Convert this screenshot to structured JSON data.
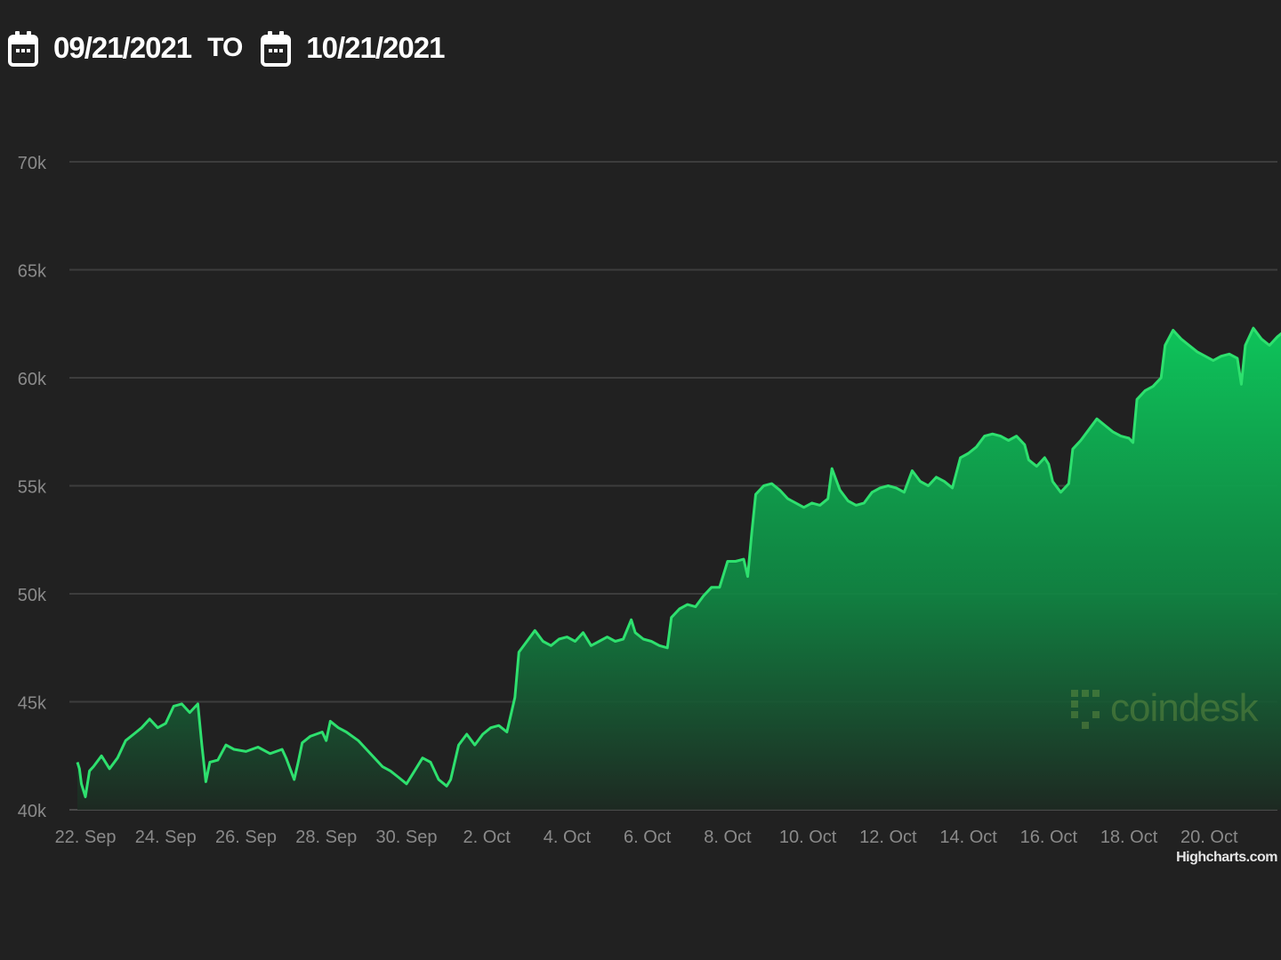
{
  "header": {
    "start_date": "09/21/2021",
    "separator": "TO",
    "end_date": "10/21/2021",
    "icon": "calendar-icon"
  },
  "credit": "Highcharts.com",
  "watermark": "coindesk",
  "colors": {
    "background": "#212121",
    "line": "#2ee06e",
    "area_top": "#0ec45a",
    "area_bottom": "#1d2a22",
    "grid": "#3d3d3d",
    "axis_text": "#8a8a8a"
  },
  "chart_data": {
    "type": "area",
    "title": "",
    "xlabel": "",
    "ylabel": "",
    "x_ticks": [
      "22. Sep",
      "24. Sep",
      "26. Sep",
      "28. Sep",
      "30. Sep",
      "2. Oct",
      "4. Oct",
      "6. Oct",
      "8. Oct",
      "10. Oct",
      "12. Oct",
      "14. Oct",
      "16. Oct",
      "18. Oct",
      "20. Oct"
    ],
    "y_ticks": [
      "40k",
      "45k",
      "50k",
      "55k",
      "60k",
      "65k",
      "70k"
    ],
    "ylim": [
      40000,
      70000
    ],
    "xlim": [
      21.6,
      51.7
    ],
    "x_unit": "days from 21 Sep 2021",
    "grid": true,
    "legend": "none",
    "series": [
      {
        "name": "",
        "points": [
          [
            21.8,
            42200
          ],
          [
            21.85,
            41900
          ],
          [
            21.9,
            41200
          ],
          [
            22.0,
            40600
          ],
          [
            22.1,
            41800
          ],
          [
            22.2,
            42000
          ],
          [
            22.4,
            42500
          ],
          [
            22.6,
            41900
          ],
          [
            22.8,
            42400
          ],
          [
            23.0,
            43200
          ],
          [
            23.2,
            43500
          ],
          [
            23.4,
            43800
          ],
          [
            23.6,
            44200
          ],
          [
            23.8,
            43800
          ],
          [
            24.0,
            44000
          ],
          [
            24.2,
            44800
          ],
          [
            24.4,
            44900
          ],
          [
            24.6,
            44500
          ],
          [
            24.8,
            44900
          ],
          [
            24.9,
            43000
          ],
          [
            25.0,
            41300
          ],
          [
            25.1,
            42200
          ],
          [
            25.3,
            42300
          ],
          [
            25.5,
            43000
          ],
          [
            25.7,
            42800
          ],
          [
            26.0,
            42700
          ],
          [
            26.3,
            42900
          ],
          [
            26.6,
            42600
          ],
          [
            26.9,
            42800
          ],
          [
            27.0,
            42400
          ],
          [
            27.2,
            41400
          ],
          [
            27.3,
            42200
          ],
          [
            27.4,
            43100
          ],
          [
            27.6,
            43400
          ],
          [
            27.9,
            43600
          ],
          [
            28.0,
            43200
          ],
          [
            28.1,
            44100
          ],
          [
            28.3,
            43800
          ],
          [
            28.5,
            43600
          ],
          [
            28.8,
            43200
          ],
          [
            29.0,
            42800
          ],
          [
            29.2,
            42400
          ],
          [
            29.4,
            42000
          ],
          [
            29.6,
            41800
          ],
          [
            29.8,
            41500
          ],
          [
            30.0,
            41200
          ],
          [
            30.2,
            41800
          ],
          [
            30.4,
            42400
          ],
          [
            30.6,
            42200
          ],
          [
            30.8,
            41400
          ],
          [
            31.0,
            41100
          ],
          [
            31.1,
            41400
          ],
          [
            31.3,
            43000
          ],
          [
            31.5,
            43500
          ],
          [
            31.7,
            43000
          ],
          [
            31.9,
            43500
          ],
          [
            32.1,
            43800
          ],
          [
            32.3,
            43900
          ],
          [
            32.5,
            43600
          ],
          [
            32.7,
            45200
          ],
          [
            32.8,
            47300
          ],
          [
            33.0,
            47800
          ],
          [
            33.2,
            48300
          ],
          [
            33.4,
            47800
          ],
          [
            33.6,
            47600
          ],
          [
            33.8,
            47900
          ],
          [
            34.0,
            48000
          ],
          [
            34.2,
            47800
          ],
          [
            34.4,
            48200
          ],
          [
            34.6,
            47600
          ],
          [
            34.8,
            47800
          ],
          [
            35.0,
            48000
          ],
          [
            35.2,
            47800
          ],
          [
            35.4,
            47900
          ],
          [
            35.6,
            48800
          ],
          [
            35.7,
            48200
          ],
          [
            35.9,
            47900
          ],
          [
            36.1,
            47800
          ],
          [
            36.3,
            47600
          ],
          [
            36.5,
            47500
          ],
          [
            36.6,
            48900
          ],
          [
            36.8,
            49300
          ],
          [
            37.0,
            49500
          ],
          [
            37.2,
            49400
          ],
          [
            37.4,
            49900
          ],
          [
            37.6,
            50300
          ],
          [
            37.8,
            50300
          ],
          [
            38.0,
            51500
          ],
          [
            38.2,
            51500
          ],
          [
            38.4,
            51600
          ],
          [
            38.5,
            50800
          ],
          [
            38.6,
            52800
          ],
          [
            38.7,
            54600
          ],
          [
            38.9,
            55000
          ],
          [
            39.1,
            55100
          ],
          [
            39.3,
            54800
          ],
          [
            39.5,
            54400
          ],
          [
            39.7,
            54200
          ],
          [
            39.9,
            54000
          ],
          [
            40.1,
            54200
          ],
          [
            40.3,
            54100
          ],
          [
            40.5,
            54400
          ],
          [
            40.6,
            55800
          ],
          [
            40.8,
            54800
          ],
          [
            41.0,
            54300
          ],
          [
            41.2,
            54100
          ],
          [
            41.4,
            54200
          ],
          [
            41.6,
            54700
          ],
          [
            41.8,
            54900
          ],
          [
            42.0,
            55000
          ],
          [
            42.2,
            54900
          ],
          [
            42.4,
            54700
          ],
          [
            42.6,
            55700
          ],
          [
            42.8,
            55200
          ],
          [
            43.0,
            55000
          ],
          [
            43.2,
            55400
          ],
          [
            43.4,
            55200
          ],
          [
            43.6,
            54900
          ],
          [
            43.8,
            56300
          ],
          [
            44.0,
            56500
          ],
          [
            44.2,
            56800
          ],
          [
            44.4,
            57300
          ],
          [
            44.6,
            57400
          ],
          [
            44.8,
            57300
          ],
          [
            45.0,
            57100
          ],
          [
            45.2,
            57300
          ],
          [
            45.4,
            56900
          ],
          [
            45.5,
            56200
          ],
          [
            45.7,
            55900
          ],
          [
            45.9,
            56300
          ],
          [
            46.0,
            56000
          ],
          [
            46.1,
            55200
          ],
          [
            46.3,
            54700
          ],
          [
            46.5,
            55100
          ],
          [
            46.6,
            56700
          ],
          [
            46.8,
            57100
          ],
          [
            47.0,
            57600
          ],
          [
            47.2,
            58100
          ],
          [
            47.4,
            57800
          ],
          [
            47.6,
            57500
          ],
          [
            47.8,
            57300
          ],
          [
            48.0,
            57200
          ],
          [
            48.1,
            57000
          ],
          [
            48.2,
            59000
          ],
          [
            48.4,
            59400
          ],
          [
            48.6,
            59600
          ],
          [
            48.8,
            60000
          ],
          [
            48.9,
            61500
          ],
          [
            49.1,
            62200
          ],
          [
            49.3,
            61800
          ],
          [
            49.5,
            61500
          ],
          [
            49.7,
            61200
          ],
          [
            49.9,
            61000
          ],
          [
            50.1,
            60800
          ],
          [
            50.3,
            61000
          ],
          [
            50.5,
            61100
          ],
          [
            50.7,
            60900
          ],
          [
            50.8,
            59700
          ],
          [
            50.9,
            61500
          ],
          [
            51.1,
            62300
          ],
          [
            51.3,
            61800
          ],
          [
            51.5,
            61500
          ],
          [
            51.7,
            61900
          ],
          [
            51.9,
            62200
          ]
        ]
      }
    ]
  }
}
